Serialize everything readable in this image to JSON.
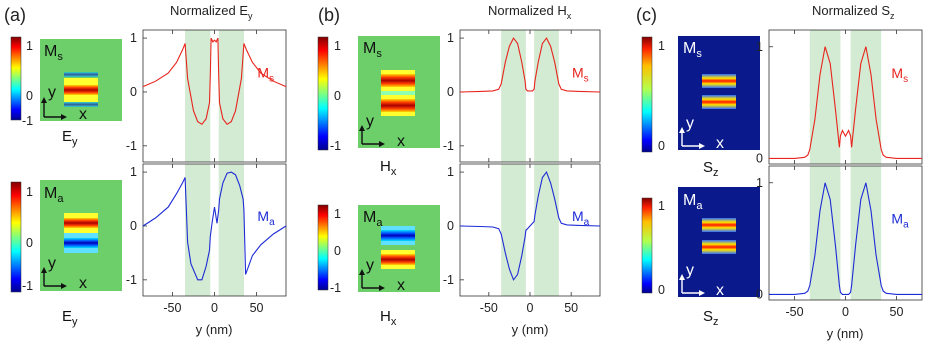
{
  "panels": [
    {
      "label": "(a)",
      "title": "Normalized E",
      "title_sub": "y",
      "colorbar_ticks": [
        "1",
        "0",
        "-1"
      ],
      "map_top": {
        "mode": "M",
        "mode_sub": "s",
        "caption": "E",
        "caption_sub": "y",
        "axis_y": "y",
        "axis_x": "x",
        "background": "#6ccf6a"
      },
      "map_bottom": {
        "mode": "M",
        "mode_sub": "a",
        "caption": "E",
        "caption_sub": "y",
        "axis_y": "y",
        "axis_x": "x",
        "background": "#6ccf6a"
      }
    },
    {
      "label": "(b)",
      "title": "Normalized H",
      "title_sub": "x",
      "colorbar_ticks": [
        "1",
        "0",
        "-1"
      ],
      "map_top": {
        "mode": "M",
        "mode_sub": "s",
        "caption": "H",
        "caption_sub": "x",
        "axis_y": "y",
        "axis_x": "x",
        "background": "#6ccf6a"
      },
      "map_bottom": {
        "mode": "M",
        "mode_sub": "a",
        "caption": "H",
        "caption_sub": "x",
        "axis_y": "y",
        "axis_x": "x",
        "background": "#6ccf6a"
      }
    },
    {
      "label": "(c)",
      "title": "Normalized S",
      "title_sub": "z",
      "colorbar_ticks": [
        "1",
        "0"
      ],
      "map_top": {
        "mode": "M",
        "mode_sub": "s",
        "caption": "S",
        "caption_sub": "z",
        "axis_y": "y",
        "axis_x": "x",
        "background": "#0a1a8c"
      },
      "map_bottom": {
        "mode": "M",
        "mode_sub": "a",
        "caption": "S",
        "caption_sub": "z",
        "axis_y": "y",
        "axis_x": "x",
        "background": "#0a1a8c"
      }
    }
  ],
  "colors": {
    "symmetric": "#e8241c",
    "antisymmetric": "#1d2bd6",
    "shade": "#d3ead3"
  },
  "chart_data": [
    {
      "type": "line",
      "title": "Normalized Ey",
      "xlabel": "y (nm)",
      "xlim": [
        -85,
        85
      ],
      "xticks": [
        -50,
        0,
        50
      ],
      "shaded_regions": [
        [
          -35,
          -5
        ],
        [
          5,
          35
        ]
      ],
      "subplots": [
        {
          "label": "Ms",
          "color": "#e8241c",
          "ylim": [
            -1.3,
            1.15
          ],
          "yticks": [
            -1,
            0,
            1
          ],
          "x": [
            -85,
            -70,
            -55,
            -45,
            -38,
            -35,
            -32,
            -25,
            -20,
            -15,
            -10,
            -6,
            -5,
            -4,
            -2,
            0,
            2,
            4,
            5,
            6,
            10,
            15,
            20,
            25,
            32,
            35,
            38,
            45,
            55,
            70,
            85
          ],
          "y": [
            0.1,
            0.2,
            0.35,
            0.55,
            0.78,
            0.9,
            0.25,
            -0.35,
            -0.55,
            -0.6,
            -0.5,
            -0.2,
            0.3,
            1.0,
            0.93,
            0.96,
            0.93,
            1.0,
            0.3,
            -0.2,
            -0.5,
            -0.6,
            -0.55,
            -0.35,
            0.25,
            0.9,
            0.78,
            0.55,
            0.35,
            0.2,
            0.1
          ]
        },
        {
          "label": "Ma",
          "color": "#1d2bd6",
          "ylim": [
            -1.3,
            1.15
          ],
          "yticks": [
            -1,
            0,
            1
          ],
          "x": [
            -85,
            -70,
            -55,
            -45,
            -38,
            -35,
            -32,
            -28,
            -20,
            -15,
            -10,
            -6,
            -5,
            -3,
            0,
            3,
            5,
            6,
            10,
            15,
            20,
            25,
            30,
            34,
            35,
            37,
            45,
            55,
            70,
            85
          ],
          "y": [
            0.0,
            0.15,
            0.35,
            0.6,
            0.8,
            0.9,
            -0.3,
            -0.7,
            -1.0,
            -1.0,
            -0.75,
            -0.45,
            -0.2,
            0.05,
            0.35,
            0.05,
            0.3,
            0.5,
            0.8,
            0.98,
            1.0,
            0.95,
            0.75,
            0.5,
            0.3,
            -0.9,
            -0.55,
            -0.35,
            -0.15,
            0.0
          ]
        }
      ]
    },
    {
      "type": "line",
      "title": "Normalized Hx",
      "xlabel": "y (nm)",
      "xlim": [
        -85,
        85
      ],
      "xticks": [
        -50,
        0,
        50
      ],
      "shaded_regions": [
        [
          -35,
          -5
        ],
        [
          5,
          35
        ]
      ],
      "subplots": [
        {
          "label": "Ms",
          "color": "#e8241c",
          "ylim": [
            -1.3,
            1.15
          ],
          "yticks": [
            -1,
            0,
            1
          ],
          "x": [
            -85,
            -60,
            -45,
            -38,
            -35,
            -30,
            -25,
            -20,
            -15,
            -10,
            -6,
            -5,
            -3,
            0,
            3,
            5,
            6,
            10,
            15,
            20,
            25,
            30,
            35,
            38,
            45,
            60,
            85
          ],
          "y": [
            0.0,
            0.01,
            0.02,
            0.05,
            0.15,
            0.55,
            0.85,
            1.0,
            0.9,
            0.55,
            0.2,
            0.05,
            0.02,
            0.02,
            0.02,
            0.05,
            0.2,
            0.55,
            0.9,
            1.0,
            0.85,
            0.55,
            0.15,
            0.05,
            0.02,
            0.01,
            0.0
          ]
        },
        {
          "label": "Ma",
          "color": "#1d2bd6",
          "ylim": [
            -1.3,
            1.15
          ],
          "yticks": [
            -1,
            0,
            1
          ],
          "x": [
            -85,
            -60,
            -45,
            -38,
            -35,
            -30,
            -25,
            -20,
            -15,
            -10,
            -6,
            -5,
            -3,
            0,
            3,
            5,
            6,
            10,
            15,
            20,
            25,
            30,
            35,
            38,
            45,
            60,
            85
          ],
          "y": [
            0.0,
            -0.01,
            -0.02,
            -0.05,
            -0.15,
            -0.5,
            -0.8,
            -1.0,
            -0.9,
            -0.55,
            -0.2,
            -0.08,
            -0.05,
            0.0,
            0.05,
            0.08,
            0.2,
            0.55,
            0.9,
            1.0,
            0.8,
            0.5,
            0.15,
            0.05,
            0.02,
            0.01,
            0.0
          ]
        }
      ]
    },
    {
      "type": "line",
      "title": "Normalized Sz",
      "xlabel": "y (nm)",
      "xlim": [
        -75,
        75
      ],
      "xticks": [
        -50,
        0,
        50
      ],
      "shaded_regions": [
        [
          -35,
          -5
        ],
        [
          5,
          35
        ]
      ],
      "subplots": [
        {
          "label": "Ms",
          "color": "#e8241c",
          "ylim": [
            -0.05,
            1.15
          ],
          "yticks": [
            0,
            1
          ],
          "x": [
            -75,
            -50,
            -40,
            -37,
            -35,
            -30,
            -25,
            -20,
            -15,
            -10,
            -6,
            -5,
            -3,
            0,
            3,
            5,
            6,
            10,
            15,
            20,
            25,
            30,
            35,
            37,
            40,
            50,
            75
          ],
          "y": [
            0.0,
            0.0,
            0.01,
            0.03,
            0.08,
            0.35,
            0.75,
            1.0,
            0.85,
            0.45,
            0.1,
            0.2,
            0.25,
            0.2,
            0.25,
            0.2,
            0.1,
            0.45,
            0.85,
            1.0,
            0.75,
            0.35,
            0.08,
            0.03,
            0.01,
            0.0,
            0.0
          ]
        },
        {
          "label": "Ma",
          "color": "#1d2bd6",
          "ylim": [
            -0.05,
            1.15
          ],
          "yticks": [
            0,
            1
          ],
          "x": [
            -75,
            -50,
            -40,
            -37,
            -35,
            -30,
            -25,
            -20,
            -15,
            -10,
            -6,
            -5,
            -3,
            0,
            3,
            5,
            6,
            10,
            15,
            20,
            25,
            30,
            35,
            37,
            40,
            50,
            75
          ],
          "y": [
            0.0,
            0.0,
            0.01,
            0.03,
            0.08,
            0.35,
            0.75,
            1.0,
            0.85,
            0.45,
            0.08,
            0.02,
            0.0,
            0.0,
            0.0,
            0.02,
            0.08,
            0.45,
            0.85,
            1.0,
            0.75,
            0.35,
            0.08,
            0.03,
            0.01,
            0.0,
            0.0
          ]
        }
      ]
    }
  ]
}
